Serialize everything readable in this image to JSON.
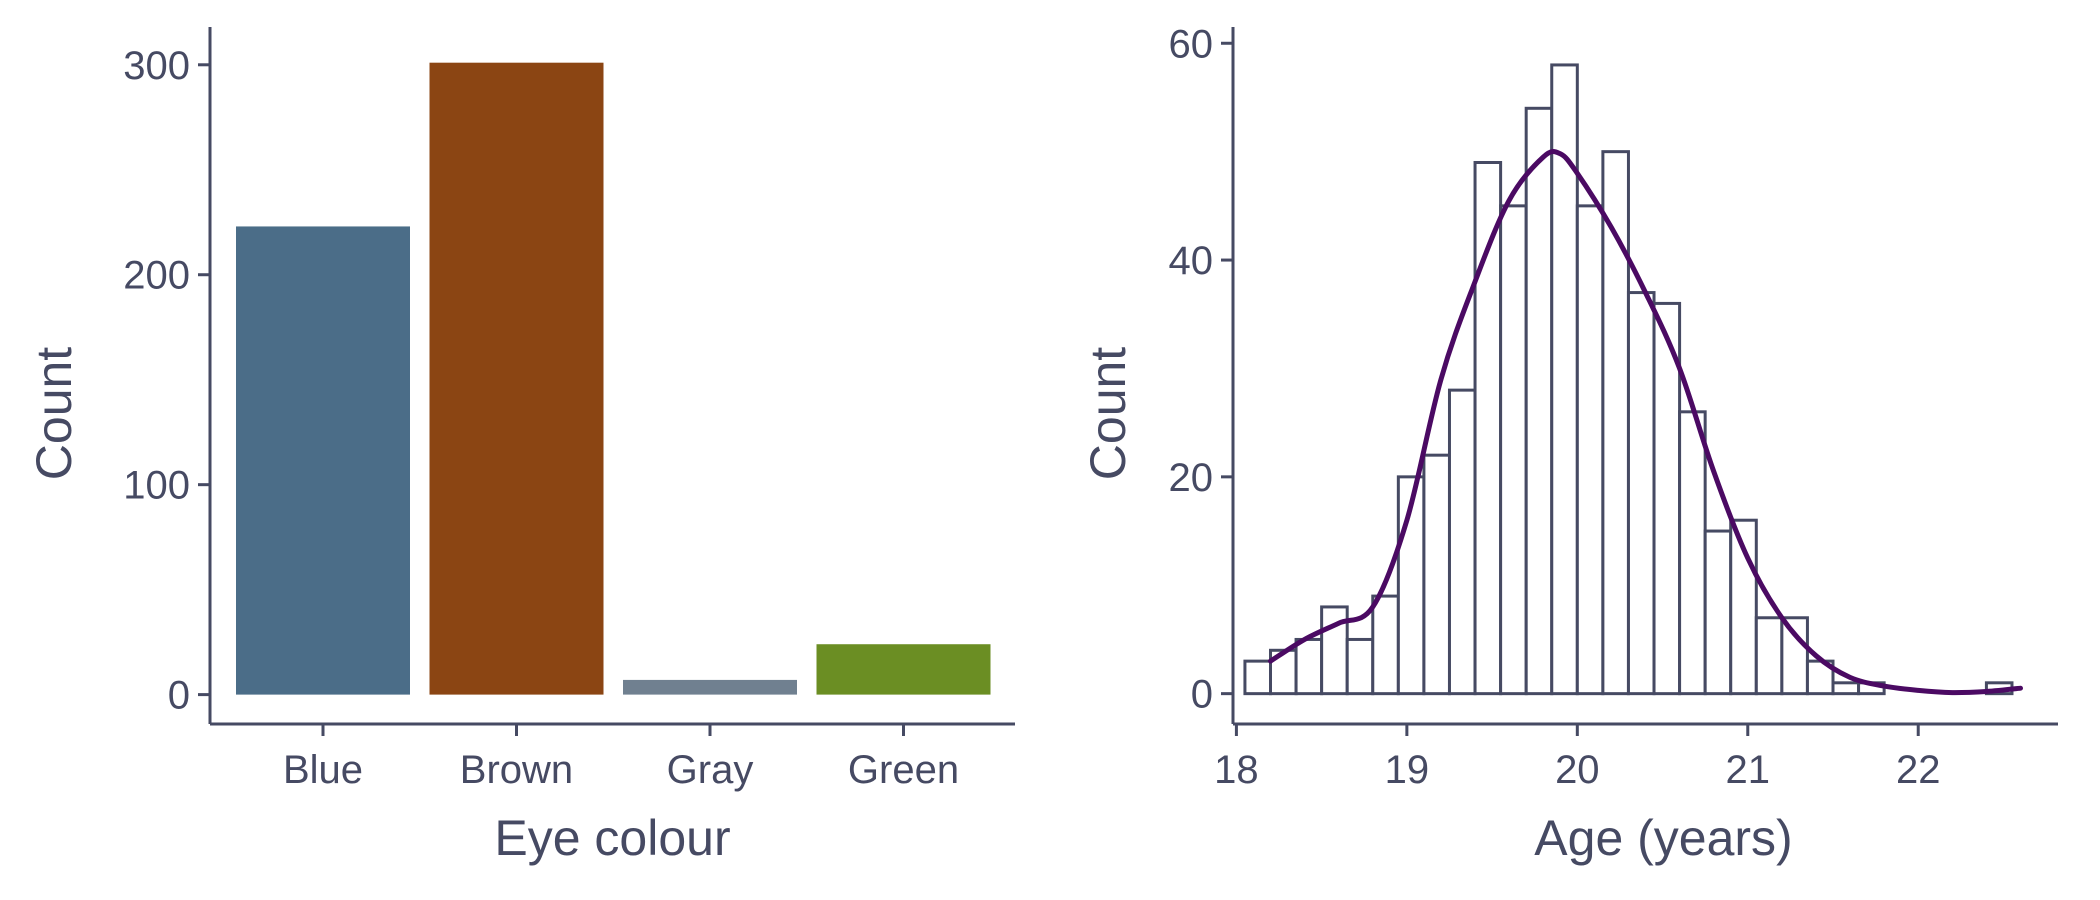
{
  "colors": {
    "axis": "#464a63",
    "text": "#464a63",
    "density_line": "#4b0a63",
    "histogram_outline": "#464a63",
    "histogram_fill": "#ffffff"
  },
  "chart_data": [
    {
      "type": "bar",
      "categories": [
        "Blue",
        "Brown",
        "Gray",
        "Green"
      ],
      "values": [
        223,
        301,
        7,
        24
      ],
      "colors": [
        "#4b6d88",
        "#8b4513",
        "#708090",
        "#6b8e23"
      ],
      "xlabel": "Eye colour",
      "ylabel": "Count",
      "ylim": [
        -14,
        318
      ],
      "yticks": [
        0,
        100,
        200,
        300
      ],
      "grid": false,
      "legend": "none"
    },
    {
      "type": "histogram",
      "bin_width": 0.15,
      "x_start": 18.05,
      "bin_counts": [
        3,
        4,
        5,
        8,
        5,
        9,
        20,
        22,
        28,
        49,
        45,
        54,
        58,
        45,
        50,
        37,
        36,
        26,
        15,
        16,
        7,
        7,
        3,
        1,
        1,
        0,
        0,
        0,
        0,
        1
      ],
      "density_curve": {
        "x": [
          18.2,
          18.4,
          18.6,
          18.8,
          19.0,
          19.2,
          19.4,
          19.6,
          19.8,
          19.9,
          20.0,
          20.2,
          20.4,
          20.6,
          20.8,
          21.0,
          21.2,
          21.4,
          21.6,
          21.8,
          22.0,
          22.2,
          22.4,
          22.6
        ],
        "y": [
          3,
          5,
          6.5,
          8,
          16,
          29,
          38,
          45.5,
          49.5,
          49.8,
          48,
          43,
          37,
          30,
          20.5,
          12.5,
          7,
          3.5,
          1.5,
          0.7,
          0.3,
          0.1,
          0.2,
          0.5
        ]
      },
      "xlabel": "Age (years)",
      "ylabel": "Count",
      "xlim": [
        17.98,
        22.82
      ],
      "ylim": [
        -2.8,
        61.5
      ],
      "xticks": [
        18,
        19,
        20,
        21,
        22
      ],
      "yticks": [
        0,
        20,
        40,
        60
      ],
      "grid": false,
      "legend": "none"
    }
  ]
}
